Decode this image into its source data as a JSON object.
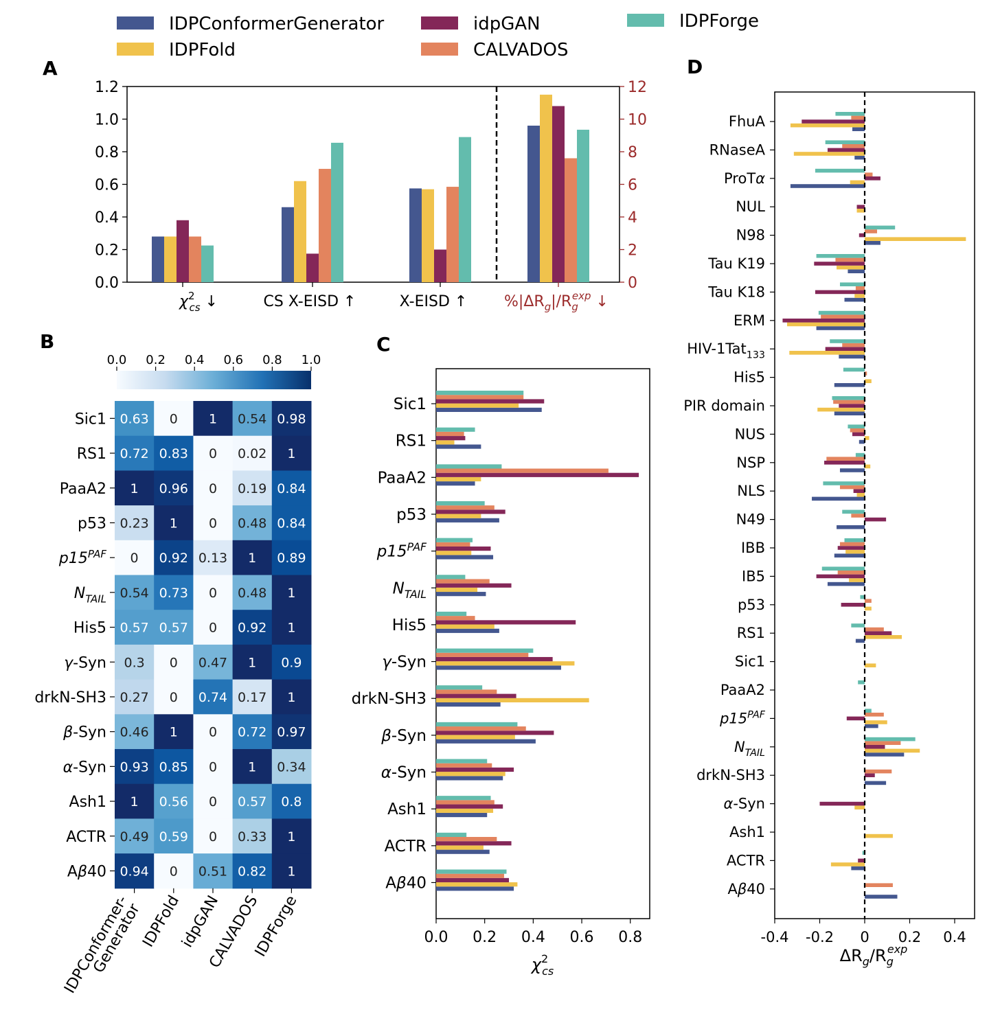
{
  "colors": {
    "IDPConformerGenerator": "#44578f",
    "IDPFold": "#f0c24c",
    "idpGAN": "#842758",
    "CALVADOS": "#e3845e",
    "IDPForge": "#63bcad",
    "right_axis": "#9b2a2a"
  },
  "legend": [
    "IDPConformerGenerator",
    "IDPFold",
    "idpGAN",
    "CALVADOS",
    "IDPForge"
  ],
  "panel_labels": [
    "A",
    "B",
    "C",
    "D"
  ],
  "chart_data": [
    {
      "panel": "A",
      "type": "bar",
      "categories": [
        "χ²cs ↓",
        "CS X-EISD ↑",
        "X-EISD ↑",
        "%|ΔRg|/Rg^exp ↓"
      ],
      "category_labels": [
        {
          "main": "χ",
          "sup": "2",
          "sub": "cs",
          "after": " ↓"
        },
        {
          "main": "CS X-EISD ↑"
        },
        {
          "main": "X-EISD ↑"
        },
        {
          "main": "%|ΔR",
          "sub": "g",
          "mid": "|/R",
          "sub2": "g",
          "sup2": "exp",
          "after": " ↓"
        }
      ],
      "series": [
        {
          "name": "IDPConformerGenerator",
          "values": [
            0.28,
            0.46,
            0.575,
            9.6
          ]
        },
        {
          "name": "IDPFold",
          "values": [
            0.28,
            0.62,
            0.57,
            11.5
          ]
        },
        {
          "name": "idpGAN",
          "values": [
            0.38,
            0.175,
            0.2,
            10.8
          ]
        },
        {
          "name": "CALVADOS",
          "values": [
            0.28,
            0.695,
            0.585,
            7.6
          ]
        },
        {
          "name": "IDPForge",
          "values": [
            0.225,
            0.855,
            0.89,
            9.35
          ]
        }
      ],
      "ylim_left": [
        0,
        1.2
      ],
      "ylim_right": [
        0,
        12
      ],
      "yticks_left": [
        "0.0",
        "0.2",
        "0.4",
        "0.6",
        "0.8",
        "1.0",
        "1.2"
      ],
      "yticks_right": [
        "0",
        "2",
        "4",
        "6",
        "8",
        "10",
        "12"
      ],
      "right_axis_categories": [
        3
      ],
      "divider_after_category": 2
    },
    {
      "panel": "B",
      "type": "heatmap",
      "rows": [
        {
          "label": "Sic1"
        },
        {
          "label": "RS1"
        },
        {
          "label": "PaaA2"
        },
        {
          "label": "p53"
        },
        {
          "label": "p15",
          "sup": "PAF",
          "italic": true
        },
        {
          "label": "N",
          "sub": "TAIL",
          "italic": true
        },
        {
          "label": "His5"
        },
        {
          "label": "γ-Syn",
          "italicPrefix": "γ"
        },
        {
          "label": "drkN-SH3"
        },
        {
          "label": "β-Syn",
          "italicPrefix": "β"
        },
        {
          "label": "α-Syn",
          "italicPrefix": "α"
        },
        {
          "label": "Ash1"
        },
        {
          "label": "ACTR"
        },
        {
          "label": "Aβ40",
          "italicMid": "β"
        }
      ],
      "columns": [
        [
          "IDPConformer-",
          "Generator"
        ],
        [
          "IDPFold"
        ],
        [
          "idpGAN"
        ],
        [
          "CALVADOS"
        ],
        [
          "IDPForge"
        ]
      ],
      "values": [
        [
          "0.63",
          "0",
          "1",
          "0.54",
          "0.98"
        ],
        [
          "0.72",
          "0.83",
          "0",
          "0.02",
          "1"
        ],
        [
          "1",
          "0.96",
          "0",
          "0.19",
          "0.84"
        ],
        [
          "0.23",
          "1",
          "0",
          "0.48",
          "0.84"
        ],
        [
          "0",
          "0.92",
          "0.13",
          "1",
          "0.89"
        ],
        [
          "0.54",
          "0.73",
          "0",
          "0.48",
          "1"
        ],
        [
          "0.57",
          "0.57",
          "0",
          "0.92",
          "1"
        ],
        [
          "0.3",
          "0",
          "0.47",
          "1",
          "0.9"
        ],
        [
          "0.27",
          "0",
          "0.74",
          "0.17",
          "1"
        ],
        [
          "0.46",
          "1",
          "0",
          "0.72",
          "0.97"
        ],
        [
          "0.93",
          "0.85",
          "0",
          "1",
          "0.34"
        ],
        [
          "1",
          "0.56",
          "0",
          "0.57",
          "0.8"
        ],
        [
          "0.49",
          "0.59",
          "0",
          "0.33",
          "1"
        ],
        [
          "0.94",
          "0",
          "0.51",
          "0.82",
          "1"
        ]
      ],
      "colorbar_ticks": [
        "0.0",
        "0.2",
        "0.4",
        "0.6",
        "0.8",
        "1.0"
      ],
      "colorbar_range": [
        0,
        1
      ],
      "cmap": "Blues"
    },
    {
      "panel": "C",
      "type": "bar",
      "orientation": "horizontal",
      "categories": [
        "Sic1",
        "RS1",
        "PaaA2",
        "p53",
        "p15PAF",
        "NTAIL",
        "His5",
        "γ-Syn",
        "drkN-SH3",
        "β-Syn",
        "α-Syn",
        "Ash1",
        "ACTR",
        "Aβ40"
      ],
      "series": [
        {
          "name": "IDPConformerGenerator",
          "values": [
            0.435,
            0.185,
            0.16,
            0.26,
            0.235,
            0.205,
            0.26,
            0.515,
            0.265,
            0.41,
            0.275,
            0.21,
            0.22,
            0.32
          ]
        },
        {
          "name": "IDPFold",
          "values": [
            0.34,
            0.075,
            0.185,
            0.185,
            0.145,
            0.17,
            0.24,
            0.57,
            0.63,
            0.325,
            0.285,
            0.235,
            0.195,
            0.335
          ]
        },
        {
          "name": "idpGAN",
          "values": [
            0.445,
            0.12,
            0.835,
            0.285,
            0.225,
            0.31,
            0.575,
            0.48,
            0.33,
            0.485,
            0.32,
            0.275,
            0.31,
            0.3
          ]
        },
        {
          "name": "CALVADOS",
          "values": [
            0.36,
            0.115,
            0.71,
            0.24,
            0.14,
            0.22,
            0.16,
            0.38,
            0.25,
            0.37,
            0.23,
            0.24,
            0.25,
            0.28
          ]
        },
        {
          "name": "IDPForge",
          "values": [
            0.36,
            0.16,
            0.27,
            0.2,
            0.15,
            0.12,
            0.125,
            0.4,
            0.19,
            0.335,
            0.21,
            0.225,
            0.125,
            0.29
          ]
        }
      ],
      "xlim": [
        0,
        0.88
      ],
      "xticks": [
        "0.0",
        "0.2",
        "0.4",
        "0.6",
        "0.8"
      ],
      "xlabel": "χ²cs"
    },
    {
      "panel": "D",
      "type": "bar",
      "orientation": "horizontal",
      "categories": [
        "FhuA",
        "RNaseA",
        "ProTα",
        "NUL",
        "N98",
        "Tau K19",
        "Tau K18",
        "ERM",
        "HIV-1Tat133",
        "His5",
        "PIR domain",
        "NUS",
        "NSP",
        "NLS",
        "N49",
        "IBB",
        "IB5",
        "p53",
        "RS1",
        "Sic1",
        "PaaA2",
        "p15PAF",
        "NTAIL",
        "drkN-SH3",
        "α-Syn",
        "Ash1",
        "ACTR",
        "Aβ40"
      ],
      "series": [
        {
          "name": "IDPConformerGenerator",
          "values": [
            -0.055,
            -0.045,
            -0.33,
            0,
            0.07,
            -0.075,
            -0.09,
            -0.215,
            -0.115,
            -0.135,
            -0.135,
            -0.025,
            -0.11,
            -0.235,
            -0.125,
            -0.135,
            -0.165,
            0,
            -0.04,
            0,
            0,
            0.06,
            0.175,
            0.095,
            0,
            0,
            -0.06,
            0.145
          ]
        },
        {
          "name": "IDPFold",
          "values": [
            -0.33,
            -0.315,
            -0.065,
            -0.035,
            0.45,
            -0.125,
            -0.045,
            -0.345,
            -0.335,
            0.03,
            -0.21,
            0.02,
            0.025,
            -0.035,
            0,
            -0.085,
            -0.07,
            0.03,
            0.165,
            0.05,
            0,
            0.1,
            0.245,
            0,
            -0.045,
            0.125,
            -0.15,
            0
          ]
        },
        {
          "name": "idpGAN",
          "values": [
            -0.28,
            -0.165,
            0.07,
            -0.035,
            -0.025,
            -0.225,
            -0.22,
            -0.365,
            -0.175,
            0,
            -0.115,
            -0.055,
            -0.18,
            -0.05,
            0.095,
            -0.12,
            -0.215,
            -0.105,
            0.12,
            0,
            0,
            -0.08,
            0.09,
            0.045,
            -0.2,
            0,
            -0.03,
            0
          ]
        },
        {
          "name": "CALVADOS",
          "values": [
            -0.06,
            -0.1,
            0.035,
            0,
            0.055,
            -0.13,
            -0.04,
            -0.195,
            -0.1,
            0.01,
            -0.14,
            -0.065,
            -0.17,
            -0.11,
            -0.06,
            -0.11,
            -0.12,
            0.03,
            0.085,
            0,
            0,
            0.085,
            0.16,
            0.12,
            0,
            0,
            0,
            0.125
          ]
        },
        {
          "name": "IDPForge",
          "values": [
            -0.13,
            -0.175,
            -0.22,
            0,
            0.135,
            -0.215,
            -0.11,
            -0.205,
            -0.155,
            -0.095,
            -0.145,
            -0.075,
            -0.04,
            -0.185,
            -0.1,
            -0.09,
            -0.19,
            -0.02,
            -0.06,
            0,
            -0.03,
            0.03,
            0.225,
            0,
            0,
            0,
            -0.01,
            0
          ]
        }
      ],
      "xlim": [
        -0.4,
        0.49
      ],
      "xticks": [
        "-0.4",
        "-0.2",
        "0",
        "0.2",
        "0.4"
      ],
      "xlabel": "ΔRg/Rg^exp"
    }
  ]
}
